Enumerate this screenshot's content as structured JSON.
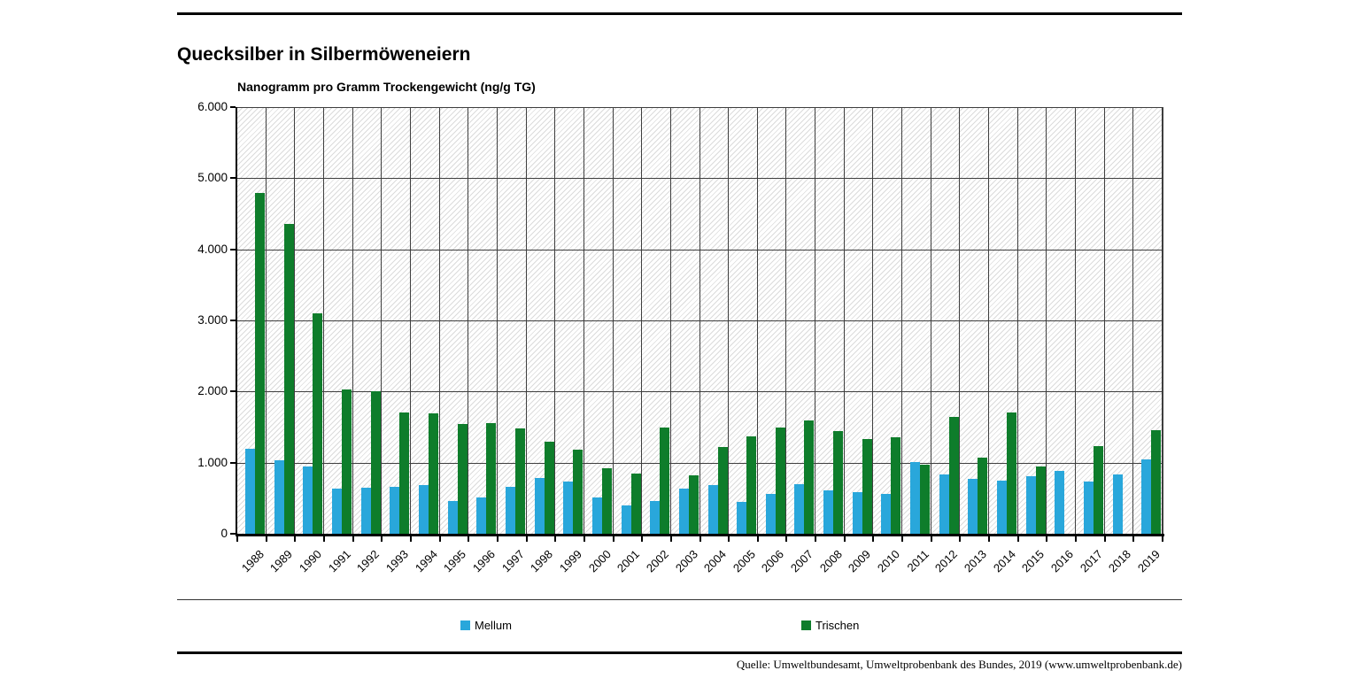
{
  "page_title": "Quecksilber in Silbermöweneiern",
  "axis_title": "Nanogramm pro Gramm Trockengewicht (ng/g TG)",
  "footer": {
    "source": "Quelle: Umweltbundesamt, Umweltprobenbank des Bundes, 2019 (www.umweltprobenbank.de)"
  },
  "colors": {
    "mellum_blue": "#29a7db",
    "trischen_green": "#0e7d2b",
    "grid": "#3e3e3e",
    "axis": "#000000"
  },
  "y_axis": {
    "tick_labels": [
      "6.000",
      "5.000",
      "4.000",
      "3.000",
      "2.000",
      "1.000",
      "0"
    ]
  },
  "chart_data": {
    "type": "bar",
    "title": "Quecksilber in Silbermöweneiern",
    "ylabel": "Nanogramm pro Gramm Trockengewicht (ng/g TG)",
    "ylim": [
      0,
      6000
    ],
    "y_tick_step": 1000,
    "grid": true,
    "legend_position": "bottom",
    "categories": [
      "1988",
      "1989",
      "1990",
      "1991",
      "1992",
      "1993",
      "1994",
      "1995",
      "1996",
      "1997",
      "1998",
      "1999",
      "2000",
      "2001",
      "2002",
      "2003",
      "2004",
      "2005",
      "2006",
      "2007",
      "2008",
      "2009",
      "2010",
      "2011",
      "2012",
      "2013",
      "2014",
      "2015",
      "2016",
      "2017",
      "2018",
      "2019"
    ],
    "series": [
      {
        "name": "Mellum",
        "color": "#29a7db",
        "values": [
          1200,
          1030,
          950,
          630,
          650,
          660,
          685,
          455,
          515,
          660,
          780,
          735,
          505,
          400,
          455,
          630,
          680,
          445,
          555,
          695,
          610,
          585,
          565,
          1010,
          830,
          775,
          750,
          815,
          880,
          730,
          835,
          1050
        ]
      },
      {
        "name": "Trischen",
        "color": "#0e7d2b",
        "values": [
          4790,
          4360,
          3100,
          2030,
          2000,
          1700,
          1690,
          1545,
          1555,
          1480,
          1290,
          1185,
          920,
          850,
          1490,
          825,
          1220,
          1365,
          1500,
          1595,
          1440,
          1330,
          1360,
          965,
          1640,
          1070,
          1700,
          950,
          null,
          1235,
          null,
          1455
        ]
      }
    ]
  }
}
